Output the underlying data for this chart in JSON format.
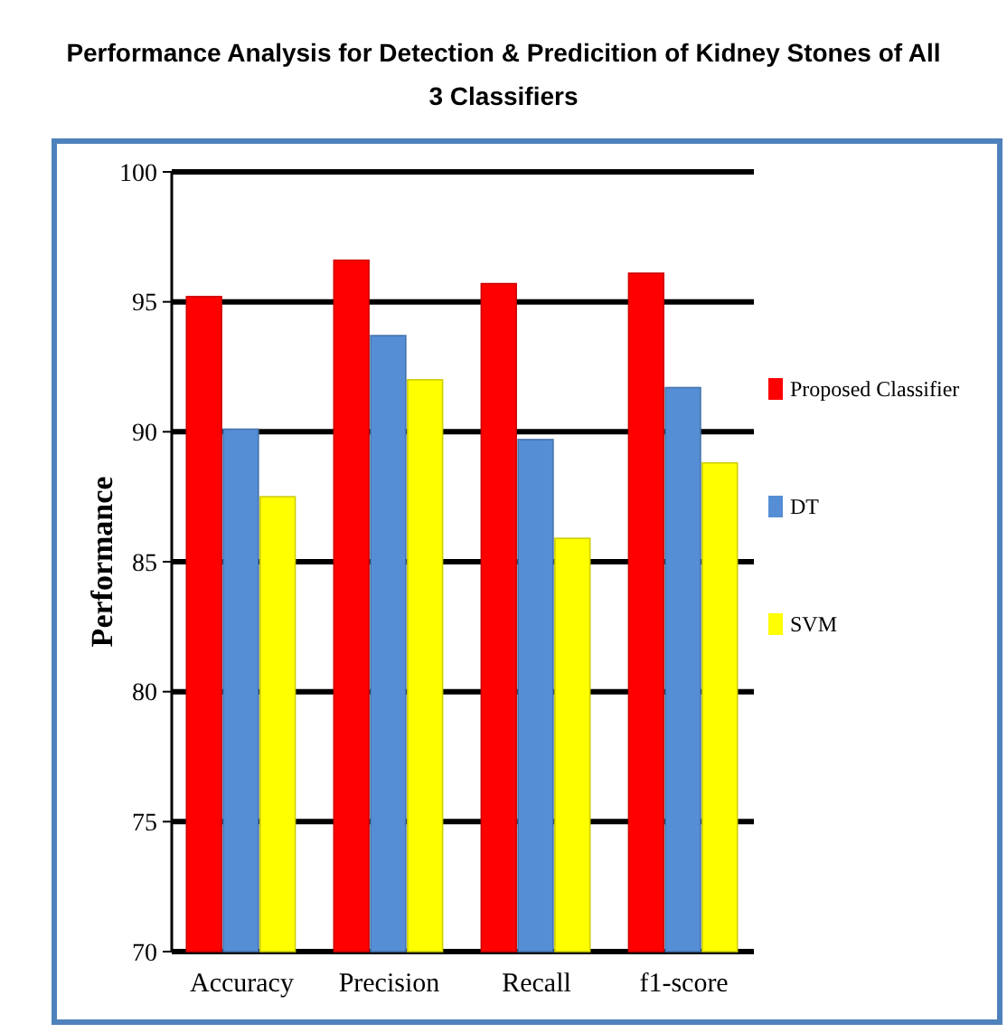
{
  "chart_data": {
    "type": "bar",
    "title": "Performance Analysis for  Detection & Predicition of Kidney Stones of All 3 Classifiers",
    "ylabel": "Performance",
    "categories": [
      "Accuracy",
      "Precision",
      "Recall",
      "f1-score"
    ],
    "series": [
      {
        "name": "Proposed Classifier",
        "color": "#ff0000",
        "values": [
          95.2,
          96.6,
          95.7,
          96.1
        ]
      },
      {
        "name": "DT",
        "color": "#558ed5",
        "values": [
          90.1,
          93.7,
          89.7,
          91.7
        ]
      },
      {
        "name": "SVM",
        "color": "#ffff00",
        "values": [
          87.5,
          92,
          85.9,
          88.8
        ]
      }
    ],
    "ylim": [
      70,
      100
    ],
    "yticks": [
      70,
      75,
      80,
      85,
      90,
      95,
      100
    ],
    "grid": "y",
    "legend": "right"
  }
}
